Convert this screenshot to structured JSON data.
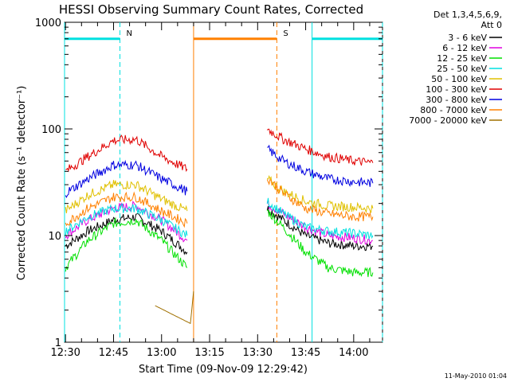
{
  "chart_data": {
    "type": "line",
    "title": "HESSI Observing Summary Count Rates, Corrected",
    "xlabel": "Start Time (09-Nov-09 12:29:42)",
    "ylabel": "Corrected Count Rate (s⁻¹ detector⁻¹)",
    "yscale": "log",
    "ylim": [
      1,
      1000
    ],
    "xlim": [
      "12:29:42",
      "14:09:00"
    ],
    "x_ticks": [
      "12:30",
      "12:45",
      "13:00",
      "13:15",
      "13:30",
      "13:45",
      "14:00"
    ],
    "y_ticks": [
      "1",
      "10",
      "100",
      "1000"
    ],
    "legend_title": [
      "Det 1,3,4,5,6,9,",
      "Att 0"
    ],
    "legend_position": "right",
    "series": [
      {
        "name": "3 - 6 keV",
        "color": "#000000",
        "x": [
          "12:30",
          "12:37",
          "12:45",
          "12:52",
          "13:00",
          "13:08"
        ],
        "values": [
          8,
          11,
          14,
          15,
          11,
          7
        ],
        "x2": [
          "13:33",
          "13:38",
          "13:45",
          "13:52",
          "14:00",
          "14:06"
        ],
        "values2": [
          18,
          14,
          10,
          8.5,
          8,
          8
        ]
      },
      {
        "name": "6 - 12 keV",
        "color": "#e000e0",
        "x": [
          "12:30",
          "12:37",
          "12:45",
          "12:52",
          "13:00",
          "13:08"
        ],
        "values": [
          10,
          14,
          18,
          19,
          14,
          9
        ],
        "x2": [
          "13:33",
          "13:38",
          "13:45",
          "13:52",
          "14:00",
          "14:06"
        ],
        "values2": [
          20,
          16,
          12,
          10,
          9.5,
          9
        ]
      },
      {
        "name": "12 - 25 keV",
        "color": "#00e000",
        "x": [
          "12:30",
          "12:37",
          "12:45",
          "12:52",
          "13:00",
          "13:08"
        ],
        "values": [
          5,
          9,
          13,
          14,
          9,
          5
        ],
        "x2": [
          "13:33",
          "13:38",
          "13:45",
          "13:52",
          "14:00",
          "14:06"
        ],
        "values2": [
          17,
          12,
          7,
          5,
          4.5,
          4.5
        ]
      },
      {
        "name": "25 - 50 keV",
        "color": "#00e0e0",
        "x": [
          "12:30",
          "12:37",
          "12:45",
          "12:52",
          "13:00",
          "13:08"
        ],
        "values": [
          11,
          15,
          18,
          18,
          14,
          10
        ],
        "x2": [
          "13:33",
          "13:38",
          "13:45",
          "13:52",
          "14:00",
          "14:06"
        ],
        "values2": [
          21,
          16,
          12,
          11,
          10.5,
          10
        ]
      },
      {
        "name": "50 - 100 keV",
        "color": "#e0c000",
        "x": [
          "12:30",
          "12:37",
          "12:45",
          "12:52",
          "13:00",
          "13:08"
        ],
        "values": [
          17,
          24,
          30,
          30,
          22,
          17
        ],
        "x2": [
          "13:33",
          "13:38",
          "13:45",
          "13:52",
          "14:00",
          "14:06"
        ],
        "values2": [
          34,
          26,
          21,
          19,
          18.5,
          18
        ]
      },
      {
        "name": "100 - 300 keV",
        "color": "#e00000",
        "x": [
          "12:30",
          "12:37",
          "12:45",
          "12:52",
          "13:00",
          "13:08"
        ],
        "values": [
          40,
          55,
          78,
          80,
          55,
          42
        ],
        "x2": [
          "13:33",
          "13:38",
          "13:45",
          "13:52",
          "14:00",
          "14:06"
        ],
        "values2": [
          100,
          80,
          65,
          55,
          50,
          48
        ]
      },
      {
        "name": "300 - 800 keV",
        "color": "#0000e0",
        "x": [
          "12:30",
          "12:37",
          "12:45",
          "12:52",
          "13:00",
          "13:08"
        ],
        "values": [
          25,
          34,
          46,
          46,
          34,
          26
        ],
        "x2": [
          "13:33",
          "13:38",
          "13:45",
          "13:52",
          "14:00",
          "14:06"
        ],
        "values2": [
          65,
          50,
          40,
          34,
          32,
          31
        ]
      },
      {
        "name": "800 - 7000 keV",
        "color": "#ff8000",
        "x": [
          "12:30",
          "12:37",
          "12:45",
          "12:52",
          "13:00",
          "13:08"
        ],
        "values": [
          13,
          18,
          23,
          23,
          17,
          13
        ],
        "x2": [
          "13:33",
          "13:38",
          "13:45",
          "13:52",
          "14:00",
          "14:06"
        ],
        "values2": [
          35,
          25,
          18,
          16,
          15,
          15
        ]
      },
      {
        "name": "7000 - 20000 keV",
        "color": "#a07000",
        "x": [
          "12:58",
          "13:09",
          "13:10"
        ],
        "values": [
          2.2,
          1.5,
          3
        ],
        "x2": [],
        "values2": []
      }
    ],
    "annotations": [
      {
        "label": "N",
        "x_start": "12:29:42",
        "x_end": "12:47:00",
        "color": "#00e0e0"
      },
      {
        "label": "",
        "x_start": "13:47:00",
        "x_end": "14:09:00",
        "color": "#00e0e0"
      },
      {
        "label": "S",
        "x_start": "13:10:00",
        "x_end": "13:36:00",
        "color": "#ff8000"
      }
    ],
    "footer": "11-May-2010 01:04"
  }
}
